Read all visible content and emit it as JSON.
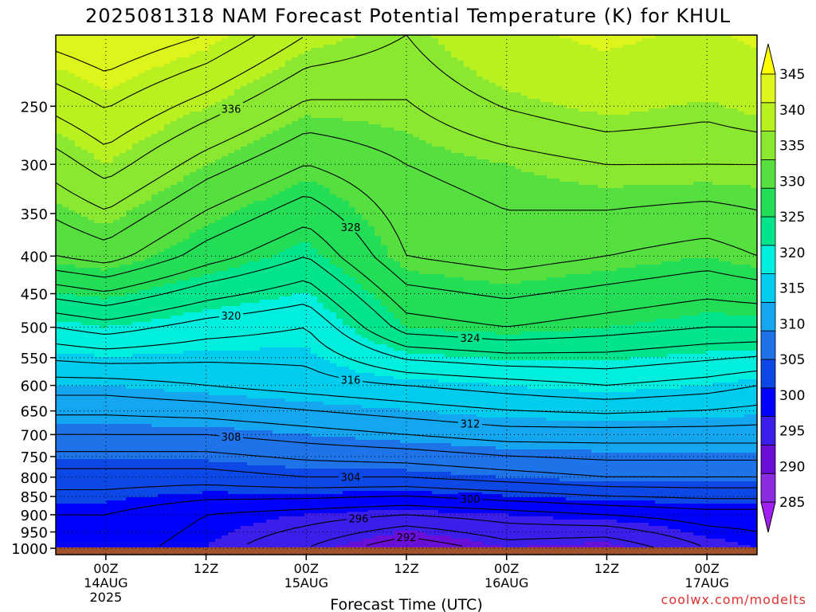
{
  "chart_data": {
    "type": "heatmap",
    "title": "2025081318 NAM Forecast Potential Temperature (K) for KHUL",
    "xlabel": "Forecast Time (UTC)",
    "ylabel": "",
    "credit": "coolwx.com/modelts",
    "y_ticks": [
      250,
      300,
      350,
      400,
      450,
      500,
      550,
      600,
      650,
      700,
      750,
      800,
      850,
      900,
      950,
      1000
    ],
    "x_ticks": [
      {
        "hour": 6,
        "lines": [
          "00Z",
          "14AUG",
          "2025"
        ]
      },
      {
        "hour": 18,
        "lines": [
          "12Z"
        ]
      },
      {
        "hour": 30,
        "lines": [
          "00Z",
          "15AUG"
        ]
      },
      {
        "hour": 42,
        "lines": [
          "12Z"
        ]
      },
      {
        "hour": 54,
        "lines": [
          "00Z",
          "16AUG"
        ]
      },
      {
        "hour": 66,
        "lines": [
          "12Z"
        ]
      },
      {
        "hour": 78,
        "lines": [
          "00Z",
          "17AUG"
        ]
      }
    ],
    "x_range_hours": [
      0,
      84
    ],
    "y_range_hpa": [
      200,
      1020
    ],
    "ground_hpa": 997,
    "colorbar": {
      "ticks": [
        285,
        290,
        295,
        300,
        305,
        310,
        315,
        320,
        325,
        330,
        335,
        340,
        345
      ],
      "colors": [
        "#a020f0",
        "#8a2be2",
        "#6a0fd8",
        "#3c1eeb",
        "#0000ff",
        "#0b48e6",
        "#1e73e8",
        "#14a6ee",
        "#00ccee",
        "#00eedd",
        "#00e58c",
        "#22dd55",
        "#55e040",
        "#8ae830",
        "#b8f020",
        "#ddf51a",
        "#ffff00"
      ]
    },
    "contour_labels": [
      "336",
      "328",
      "324",
      "320",
      "316",
      "312",
      "308",
      "304",
      "300",
      "296",
      "292"
    ],
    "profiles": [
      {
        "hour": 0,
        "pressure": [
          200,
          300,
          400,
          500,
          600,
          700,
          800,
          900,
          1000
        ],
        "theta": [
          343,
          335,
          330,
          320,
          313,
          308,
          303,
          300,
          298
        ]
      },
      {
        "hour": 6,
        "pressure": [
          200,
          300,
          400,
          500,
          600,
          700,
          800,
          900,
          1000
        ],
        "theta": [
          344,
          337,
          331,
          321,
          313,
          308,
          303,
          300,
          299
        ]
      },
      {
        "hour": 18,
        "pressure": [
          200,
          300,
          400,
          500,
          600,
          700,
          800,
          900,
          1000
        ],
        "theta": [
          342,
          333,
          327,
          319,
          314,
          308,
          303,
          298,
          297
        ]
      },
      {
        "hour": 30,
        "pressure": [
          200,
          300,
          400,
          500,
          600,
          700,
          800,
          900,
          1000
        ],
        "theta": [
          338,
          330,
          324,
          318,
          315,
          309,
          304,
          297,
          294
        ]
      },
      {
        "hour": 42,
        "pressure": [
          200,
          300,
          400,
          500,
          600,
          700,
          800,
          900,
          1000
        ],
        "theta": [
          336,
          332,
          330,
          325,
          316,
          310,
          304,
          296,
          290
        ]
      },
      {
        "hour": 54,
        "pressure": [
          200,
          300,
          400,
          500,
          600,
          700,
          800,
          900,
          1000
        ],
        "theta": [
          340,
          333,
          331,
          326,
          317,
          311,
          305,
          297,
          293
        ]
      },
      {
        "hour": 66,
        "pressure": [
          200,
          300,
          400,
          500,
          600,
          700,
          800,
          900,
          1000
        ],
        "theta": [
          342,
          334,
          330,
          325,
          318,
          311,
          306,
          298,
          292
        ]
      },
      {
        "hour": 78,
        "pressure": [
          200,
          300,
          400,
          500,
          600,
          700,
          800,
          900,
          1000
        ],
        "theta": [
          340,
          334,
          329,
          324,
          317,
          311,
          306,
          299,
          296
        ]
      },
      {
        "hour": 84,
        "pressure": [
          200,
          300,
          400,
          500,
          600,
          700,
          800,
          900,
          1000
        ],
        "theta": [
          342,
          334,
          330,
          324,
          316,
          311,
          306,
          299,
          297
        ]
      }
    ]
  }
}
